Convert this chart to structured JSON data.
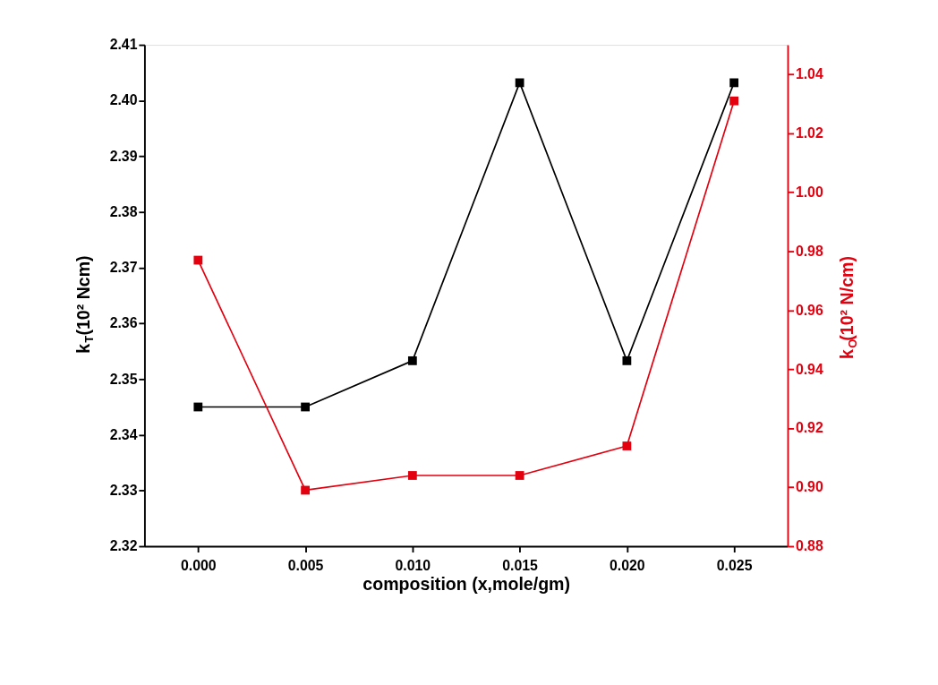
{
  "chart_data": {
    "type": "line",
    "xlabel": "composition (x,mole/gm)",
    "ylabel": "k$_{T}$(10² Ncm)",
    "y2label": "k$_{O}$(10² N/cm)",
    "x": [
      0.0,
      0.005,
      0.01,
      0.015,
      0.02,
      0.025
    ],
    "series": [
      {
        "color": "#000000",
        "values": [
          2.345,
          2.345,
          2.3533,
          2.4032,
          2.3533,
          2.4032
        ]
      },
      {
        "color": "#e3000f",
        "axis": "y2",
        "values": [
          0.977,
          0.899,
          0.904,
          0.904,
          0.914,
          1.031
        ]
      }
    ],
    "xlim": [
      -0.0025,
      0.0275
    ],
    "xticks": [
      {
        "value": 0,
        "label": "0.000"
      },
      0.005,
      {
        "value": 0.01,
        "label": "0.010"
      },
      0.015,
      {
        "value": 0.02,
        "label": "0.020"
      },
      0.025
    ],
    "ylim": [
      2.32,
      2.41
    ],
    "yticks": [
      2.32,
      2.33,
      2.34,
      2.35,
      2.36,
      2.37,
      2.38,
      2.39,
      {
        "value": 2.4,
        "label": "2.40"
      },
      2.41
    ],
    "y2lim": [
      0.88,
      1.05
    ],
    "y2ticks": [
      0.88,
      {
        "value": 0.9,
        "label": "0.90"
      },
      0.92,
      0.94,
      0.96,
      0.98,
      {
        "value": 1.0,
        "label": "1.00"
      },
      1.02,
      1.04
    ],
    "marker": "square",
    "line_style": "solid",
    "grid": false
  }
}
